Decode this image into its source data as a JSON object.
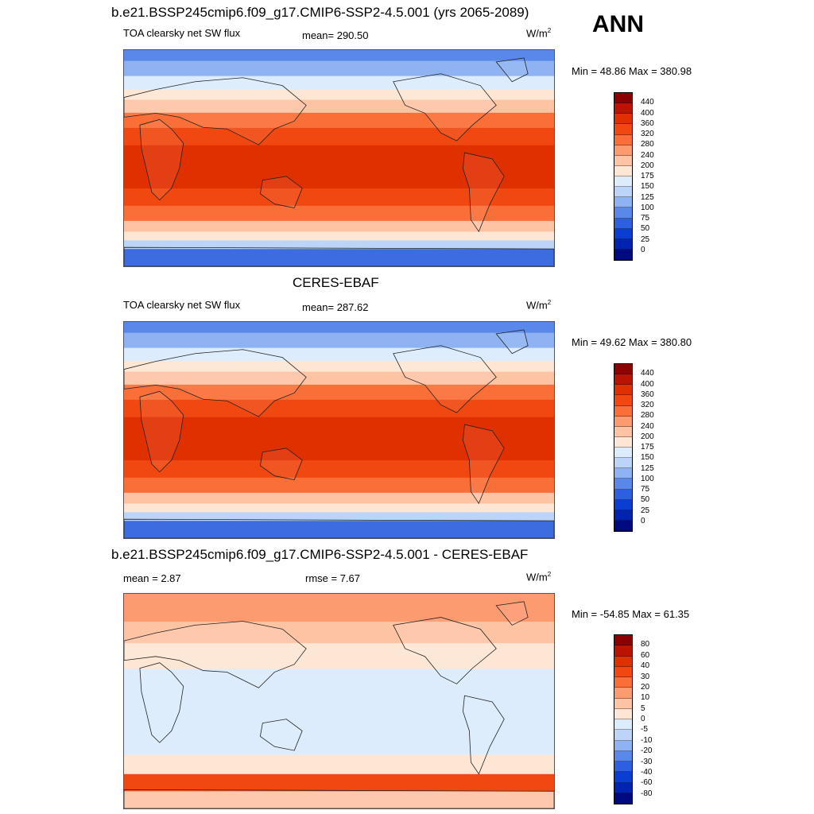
{
  "header": {
    "title1": "b.e21.BSSP245cmip6.f09_g17.CMIP6-SSP2-4.5.001 (yrs 2065-2089)",
    "season": "ANN"
  },
  "panels": [
    {
      "id": "model",
      "variable": "TOA clearsky net SW flux",
      "mean": "mean= 290.50",
      "unit": "W/m",
      "unit_sup": "2",
      "minmax": "Min =  48.86 Max = 380.98"
    },
    {
      "id": "obs",
      "title": "CERES-EBAF",
      "variable": "TOA clearsky net SW flux",
      "mean": "mean= 287.62",
      "unit": "W/m",
      "unit_sup": "2",
      "minmax": "Min =  49.62 Max = 380.80"
    },
    {
      "id": "diff",
      "title": "b.e21.BSSP245cmip6.f09_g17.CMIP6-SSP2-4.5.001 - CERES-EBAF",
      "mean": "mean =   2.87",
      "rmse": "rmse =   7.67",
      "unit": "W/m",
      "unit_sup": "2",
      "minmax": "Min = -54.85 Max =  61.35"
    }
  ],
  "colorbar_main": {
    "labels": [
      "440",
      "400",
      "360",
      "320",
      "280",
      "240",
      "200",
      "175",
      "150",
      "125",
      "100",
      "75",
      "50",
      "25",
      "0"
    ],
    "colors": [
      "#8b0000",
      "#b81400",
      "#e03000",
      "#f04810",
      "#fa6e38",
      "#fc9a70",
      "#fdc4a4",
      "#fde6d4",
      "#dcecfc",
      "#bcd4f8",
      "#8eb2f2",
      "#5a88ea",
      "#2c60de",
      "#0a3ed0",
      "#0024b0",
      "#000a80"
    ]
  },
  "colorbar_diff": {
    "labels": [
      "80",
      "60",
      "40",
      "30",
      "20",
      "10",
      "5",
      "0",
      "-5",
      "-10",
      "-20",
      "-30",
      "-40",
      "-60",
      "-80"
    ],
    "colors": [
      "#8b0000",
      "#b81400",
      "#e03000",
      "#f04810",
      "#fa6e38",
      "#fc9a70",
      "#fdc4a4",
      "#fde6d4",
      "#dcecfc",
      "#bcd4f8",
      "#8eb2f2",
      "#5a88ea",
      "#2c60de",
      "#0a3ed0",
      "#0024b0",
      "#000a80"
    ]
  },
  "map_bands_main": [
    {
      "frac": 0.05,
      "color": "#5a88ea"
    },
    {
      "frac": 0.07,
      "color": "#8eb2f2"
    },
    {
      "frac": 0.06,
      "color": "#dcecfc"
    },
    {
      "frac": 0.05,
      "color": "#fde6d4"
    },
    {
      "frac": 0.06,
      "color": "#fdc4a4"
    },
    {
      "frac": 0.07,
      "color": "#fa6e38"
    },
    {
      "frac": 0.08,
      "color": "#f04810"
    },
    {
      "frac": 0.2,
      "color": "#e03000"
    },
    {
      "frac": 0.08,
      "color": "#f04810"
    },
    {
      "frac": 0.07,
      "color": "#fa6e38"
    },
    {
      "frac": 0.05,
      "color": "#fdc4a4"
    },
    {
      "frac": 0.04,
      "color": "#fde6d4"
    },
    {
      "frac": 0.04,
      "color": "#bcd4f8"
    },
    {
      "frac": 0.08,
      "color": "#2c60de"
    }
  ],
  "map_bands_diff": [
    {
      "frac": 0.13,
      "color": "#fc9a70"
    },
    {
      "frac": 0.1,
      "color": "#fdc4a4"
    },
    {
      "frac": 0.12,
      "color": "#fde6d4"
    },
    {
      "frac": 0.4,
      "color": "#dcecfc"
    },
    {
      "frac": 0.09,
      "color": "#fde6d4"
    },
    {
      "frac": 0.08,
      "color": "#f04810"
    },
    {
      "frac": 0.08,
      "color": "#fdc4a4"
    }
  ]
}
